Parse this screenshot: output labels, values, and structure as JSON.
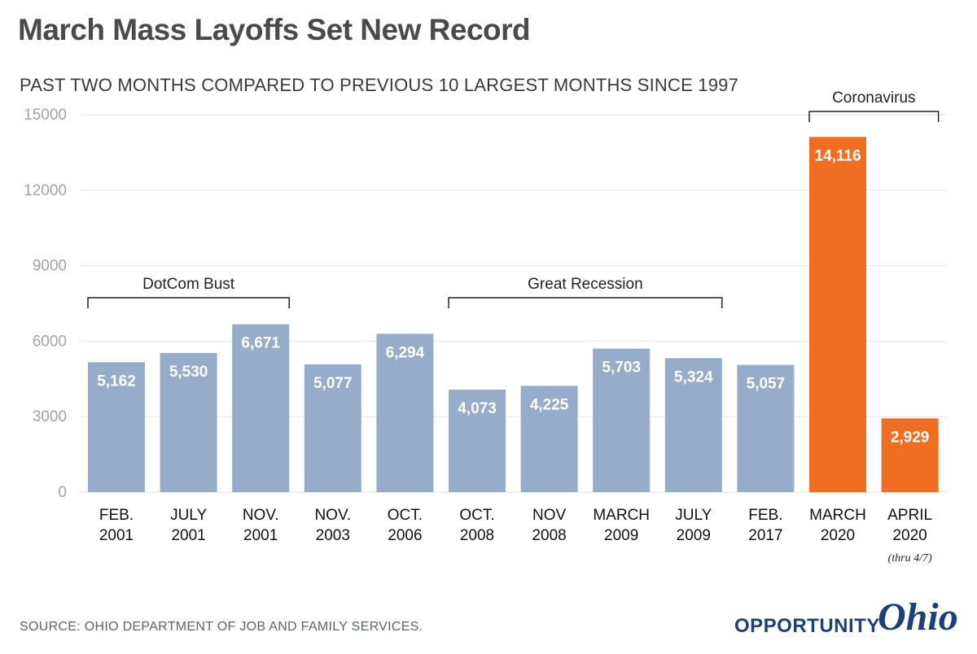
{
  "chart_data": {
    "type": "bar",
    "title": "March Mass Layoffs Set New Record",
    "subtitle": "PAST TWO MONTHS COMPARED TO PREVIOUS 10 LARGEST MONTHS SINCE 1997",
    "categories": [
      [
        "FEB.",
        "2001"
      ],
      [
        "JULY",
        "2001"
      ],
      [
        "NOV.",
        "2001"
      ],
      [
        "NOV.",
        "2003"
      ],
      [
        "OCT.",
        "2006"
      ],
      [
        "OCT.",
        "2008"
      ],
      [
        "NOV",
        "2008"
      ],
      [
        "MARCH",
        "2009"
      ],
      [
        "JULY",
        "2009"
      ],
      [
        "FEB.",
        "2017"
      ],
      [
        "MARCH",
        "2020"
      ],
      [
        "APRIL",
        "2020"
      ]
    ],
    "values": [
      5162,
      5530,
      6671,
      5077,
      6294,
      4073,
      4225,
      5703,
      5324,
      5057,
      14116,
      2929
    ],
    "value_labels": [
      "5,162",
      "5,530",
      "6,671",
      "5,077",
      "6,294",
      "4,073",
      "4,225",
      "5,703",
      "5,324",
      "5,057",
      "14,116",
      "2,929"
    ],
    "bar_colors": [
      "#96adc9",
      "#96adc9",
      "#96adc9",
      "#96adc9",
      "#96adc9",
      "#96adc9",
      "#96adc9",
      "#96adc9",
      "#96adc9",
      "#96adc9",
      "#f06e22",
      "#f06e22"
    ],
    "ylim": [
      0,
      15000
    ],
    "yticks": [
      0,
      3000,
      6000,
      9000,
      12000,
      15000
    ],
    "grid": true,
    "annotations": [
      {
        "text": "DotCom Bust",
        "from_index": 0,
        "to_index": 2
      },
      {
        "text": "Great Recession",
        "from_index": 5,
        "to_index": 8
      },
      {
        "text": "Coronavirus",
        "from_index": 10,
        "to_index": 11
      }
    ],
    "footnote": "(thru 4/7)",
    "footnote_index": 11
  },
  "source": "SOURCE: OHIO DEPARTMENT OF JOB AND FAMILY SERVICES.",
  "logo": {
    "word1": "OPPORTUNITY",
    "word2": "Ohio"
  }
}
